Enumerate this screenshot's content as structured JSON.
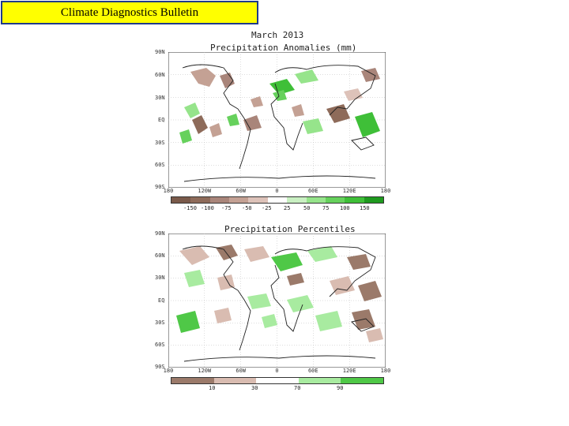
{
  "banner": {
    "title": "Climate Diagnostics Bulletin"
  },
  "panel1": {
    "title_line1": "March 2013",
    "title_line2": "Precipitation Anomalies (mm)",
    "lat_ticks": [
      "90N",
      "60N",
      "30N",
      "EQ",
      "30S",
      "60S",
      "90S"
    ],
    "lon_ticks": [
      "180",
      "120W",
      "60W",
      "0",
      "60E",
      "120E",
      "180"
    ],
    "colorbar_labels": [
      "-150",
      "-100",
      "-75",
      "-50",
      "-25",
      "25",
      "50",
      "75",
      "100",
      "150"
    ],
    "colorbar_colors": [
      "#7a5a4a",
      "#8e6b5a",
      "#a9857a",
      "#c4a194",
      "#ddc2b9",
      "#ffffff",
      "#c9f0c2",
      "#96e48b",
      "#66d15c",
      "#3fbf38",
      "#1f9a1f"
    ]
  },
  "panel2": {
    "title": "Precipitation Percentiles",
    "lat_ticks": [
      "90N",
      "60N",
      "30N",
      "EQ",
      "30S",
      "60S",
      "90S"
    ],
    "lon_ticks": [
      "180",
      "120W",
      "60W",
      "0",
      "60E",
      "120E",
      "180"
    ],
    "colorbar_labels": [
      "10",
      "30",
      "70",
      "90"
    ],
    "colorbar_colors": [
      "#9b7a6a",
      "#d9bcb1",
      "#ffffff",
      "#a8eba0",
      "#4fc847"
    ]
  }
}
